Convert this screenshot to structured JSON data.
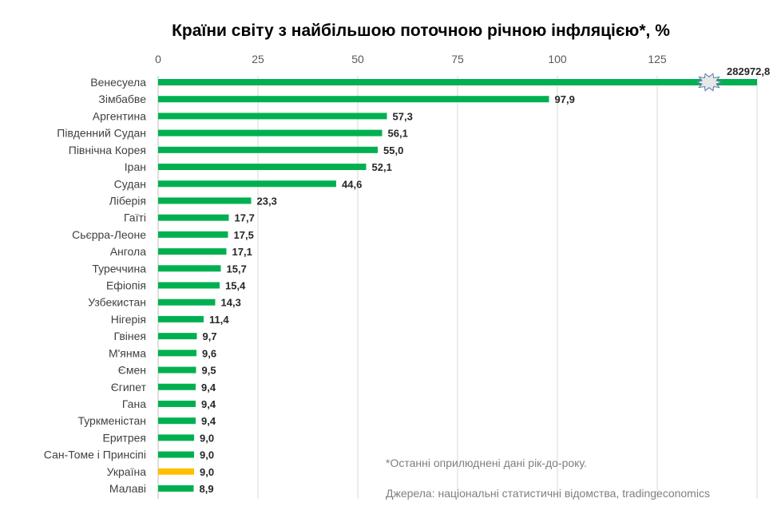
{
  "chart_data": {
    "type": "bar",
    "orientation": "horizontal",
    "title": "Країни світу з найбільшою поточною річною інфляцією*, %",
    "categories": [
      "Венесуела",
      "Зімбабве",
      "Аргентина",
      "Південний Судан",
      "Північна Корея",
      "Іран",
      "Судан",
      "Ліберія",
      "Гаїті",
      "Сьєрра-Леоне",
      "Ангола",
      "Туреччина",
      "Ефіопія",
      "Узбекистан",
      "Нігерія",
      "Гвінея",
      "М'янма",
      "Ємен",
      "Єгипет",
      "Гана",
      "Туркменістан",
      "Еритрея",
      "Сан-Томе і Принсіпі",
      "Україна",
      "Малаві"
    ],
    "values": [
      282972.8,
      97.9,
      57.3,
      56.1,
      55.0,
      52.1,
      44.6,
      23.3,
      17.7,
      17.5,
      17.1,
      15.7,
      15.4,
      14.3,
      11.4,
      9.7,
      9.6,
      9.5,
      9.4,
      9.4,
      9.4,
      9.0,
      9.0,
      9.0,
      8.9
    ],
    "data_labels": [
      "282972,8",
      "97,9",
      "57,3",
      "56,1",
      "55,0",
      "52,1",
      "44,6",
      "23,3",
      "17,7",
      "17,5",
      "17,1",
      "15,7",
      "15,4",
      "14,3",
      "11,4",
      "9,7",
      "9,6",
      "9,5",
      "9,4",
      "9,4",
      "9,4",
      "9,0",
      "9,0",
      "9,0",
      "8,9"
    ],
    "xlim": [
      0,
      150
    ],
    "x_ticks": [
      "0",
      "25",
      "50",
      "75",
      "100",
      "125"
    ],
    "x_tick_values": [
      0,
      25,
      50,
      75,
      100,
      125
    ],
    "axis_position": "top",
    "grid": true,
    "axis_break": "Венесуела",
    "colors": {
      "default": "#00b050",
      "highlight": "#ffc000",
      "grid": "#d9d9d9"
    },
    "highlight_category": "Україна"
  },
  "notes": {
    "footnote": "*Останні  оприлюднені  дані рік-до-року.",
    "source": "Джерела:  національні  статистичні  відомства, tradingeconomics"
  }
}
